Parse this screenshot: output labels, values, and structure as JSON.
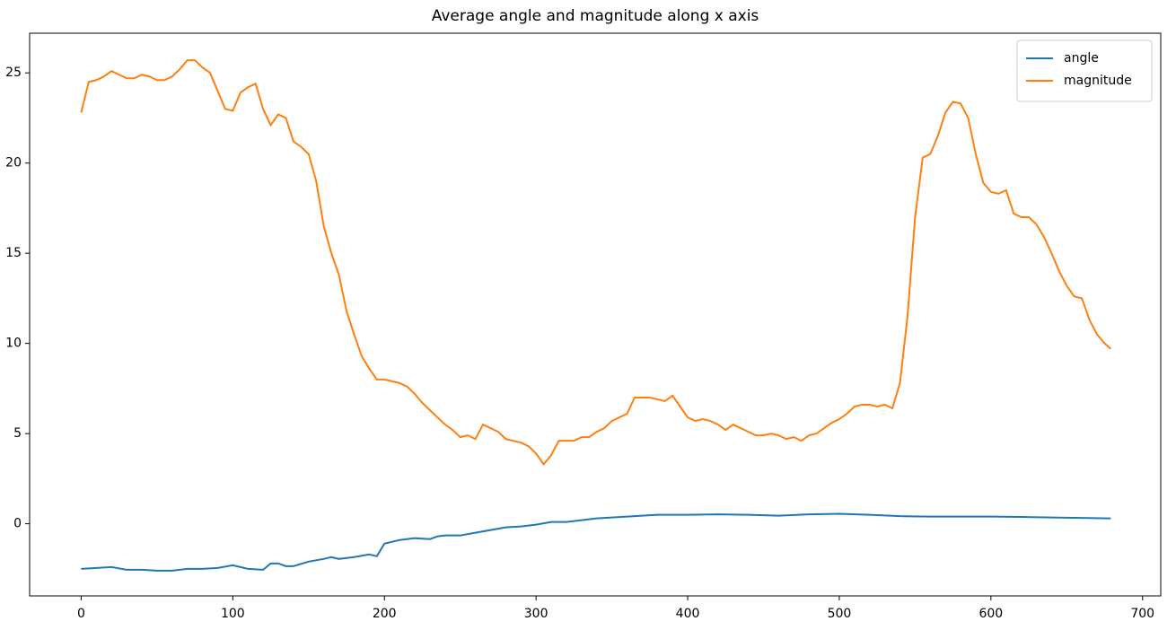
{
  "chart_data": {
    "type": "line",
    "title": "Average angle and magnitude along x axis",
    "xlim": [
      -34,
      712
    ],
    "ylim": [
      -4,
      27.2
    ],
    "xticks": [
      0,
      100,
      200,
      300,
      400,
      500,
      600,
      700
    ],
    "yticks": [
      0,
      5,
      10,
      15,
      20,
      25
    ],
    "legend": "upper right",
    "grid": false,
    "series": [
      {
        "name": "angle",
        "color": "#1f77b4",
        "x": [
          0,
          10,
          20,
          30,
          40,
          50,
          60,
          70,
          80,
          90,
          100,
          110,
          120,
          125,
          130,
          135,
          140,
          150,
          160,
          165,
          170,
          180,
          190,
          195,
          200,
          210,
          220,
          230,
          235,
          240,
          250,
          260,
          270,
          280,
          290,
          300,
          310,
          320,
          330,
          340,
          350,
          360,
          370,
          380,
          400,
          420,
          440,
          460,
          480,
          500,
          520,
          540,
          560,
          580,
          600,
          620,
          640,
          660,
          679
        ],
        "values": [
          -2.5,
          -2.45,
          -2.4,
          -2.55,
          -2.55,
          -2.6,
          -2.6,
          -2.5,
          -2.5,
          -2.45,
          -2.3,
          -2.5,
          -2.55,
          -2.2,
          -2.2,
          -2.35,
          -2.35,
          -2.1,
          -1.95,
          -1.85,
          -1.95,
          -1.85,
          -1.7,
          -1.8,
          -1.1,
          -0.9,
          -0.8,
          -0.85,
          -0.7,
          -0.65,
          -0.65,
          -0.5,
          -0.35,
          -0.2,
          -0.15,
          -0.05,
          0.1,
          0.1,
          0.2,
          0.3,
          0.35,
          0.4,
          0.45,
          0.5,
          0.5,
          0.52,
          0.5,
          0.45,
          0.52,
          0.55,
          0.5,
          0.42,
          0.4,
          0.4,
          0.4,
          0.38,
          0.35,
          0.32,
          0.3
        ]
      },
      {
        "name": "magnitude",
        "color": "#ff7f0e",
        "x": [
          0,
          5,
          10,
          15,
          20,
          25,
          30,
          35,
          40,
          45,
          50,
          55,
          60,
          65,
          70,
          75,
          80,
          85,
          90,
          95,
          100,
          105,
          110,
          115,
          120,
          125,
          130,
          135,
          140,
          145,
          150,
          155,
          160,
          165,
          170,
          175,
          180,
          185,
          190,
          195,
          200,
          205,
          210,
          215,
          220,
          225,
          230,
          235,
          240,
          245,
          250,
          255,
          260,
          265,
          270,
          275,
          280,
          285,
          290,
          295,
          300,
          305,
          310,
          315,
          320,
          325,
          330,
          335,
          340,
          345,
          350,
          355,
          360,
          365,
          370,
          375,
          380,
          385,
          390,
          395,
          400,
          405,
          410,
          415,
          420,
          425,
          430,
          435,
          440,
          445,
          450,
          455,
          460,
          465,
          470,
          475,
          480,
          485,
          490,
          495,
          500,
          505,
          510,
          515,
          520,
          525,
          530,
          535,
          540,
          545,
          550,
          555,
          560,
          565,
          570,
          575,
          580,
          585,
          590,
          595,
          600,
          605,
          610,
          615,
          620,
          625,
          630,
          635,
          640,
          645,
          650,
          655,
          660,
          665,
          670,
          675,
          679
        ],
        "values": [
          22.8,
          24.5,
          24.6,
          24.8,
          25.1,
          24.9,
          24.7,
          24.7,
          24.9,
          24.8,
          24.6,
          24.6,
          24.8,
          25.2,
          25.7,
          25.7,
          25.3,
          25.0,
          24.0,
          23.0,
          22.9,
          23.9,
          24.2,
          24.4,
          23.0,
          22.1,
          22.7,
          22.5,
          21.2,
          20.9,
          20.5,
          19.0,
          16.5,
          15.0,
          13.8,
          11.8,
          10.5,
          9.3,
          8.6,
          8.0,
          8.0,
          7.9,
          7.8,
          7.6,
          7.2,
          6.7,
          6.3,
          5.9,
          5.5,
          5.2,
          4.8,
          4.9,
          4.7,
          5.5,
          5.3,
          5.1,
          4.7,
          4.6,
          4.5,
          4.3,
          3.9,
          3.3,
          3.8,
          4.6,
          4.6,
          4.6,
          4.8,
          4.8,
          5.1,
          5.3,
          5.7,
          5.9,
          6.1,
          7.0,
          7.0,
          7.0,
          6.9,
          6.8,
          7.1,
          6.5,
          5.9,
          5.7,
          5.8,
          5.7,
          5.5,
          5.2,
          5.5,
          5.3,
          5.1,
          4.9,
          4.9,
          5.0,
          4.9,
          4.7,
          4.8,
          4.6,
          4.9,
          5.0,
          5.3,
          5.6,
          5.8,
          6.1,
          6.5,
          6.6,
          6.6,
          6.5,
          6.6,
          6.4,
          7.8,
          11.5,
          17.0,
          20.3,
          20.5,
          21.5,
          22.8,
          23.4,
          23.3,
          22.5,
          20.5,
          18.9,
          18.4,
          18.3,
          18.5,
          17.2,
          17.0,
          17.0,
          16.6,
          15.9,
          15.0,
          14.0,
          13.2,
          12.6,
          12.5,
          11.3,
          10.5,
          10.0,
          9.7
        ]
      }
    ]
  }
}
